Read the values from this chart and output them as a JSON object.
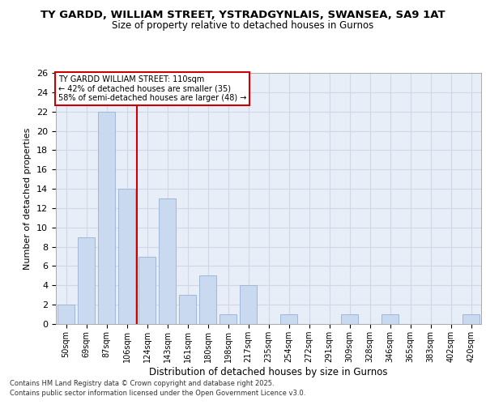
{
  "title1": "TY GARDD, WILLIAM STREET, YSTRADGYNLAIS, SWANSEA, SA9 1AT",
  "title2": "Size of property relative to detached houses in Gurnos",
  "xlabel": "Distribution of detached houses by size in Gurnos",
  "ylabel": "Number of detached properties",
  "categories": [
    "50sqm",
    "69sqm",
    "87sqm",
    "106sqm",
    "124sqm",
    "143sqm",
    "161sqm",
    "180sqm",
    "198sqm",
    "217sqm",
    "235sqm",
    "254sqm",
    "272sqm",
    "291sqm",
    "309sqm",
    "328sqm",
    "346sqm",
    "365sqm",
    "383sqm",
    "402sqm",
    "420sqm"
  ],
  "values": [
    2,
    9,
    22,
    14,
    7,
    13,
    3,
    5,
    1,
    4,
    0,
    1,
    0,
    0,
    1,
    0,
    1,
    0,
    0,
    0,
    1
  ],
  "bar_color": "#c9d9f0",
  "bar_edge_color": "#a0b8d8",
  "vline_x": 3.5,
  "vline_color": "#cc0000",
  "annotation_lines": [
    "TY GARDD WILLIAM STREET: 110sqm",
    "← 42% of detached houses are smaller (35)",
    "58% of semi-detached houses are larger (48) →"
  ],
  "annotation_box_color": "white",
  "annotation_box_edge": "#cc0000",
  "ylim": [
    0,
    26
  ],
  "yticks": [
    0,
    2,
    4,
    6,
    8,
    10,
    12,
    14,
    16,
    18,
    20,
    22,
    24,
    26
  ],
  "grid_color": "#d0d8e8",
  "bg_color": "#e8eef8",
  "footnote1": "Contains HM Land Registry data © Crown copyright and database right 2025.",
  "footnote2": "Contains public sector information licensed under the Open Government Licence v3.0."
}
